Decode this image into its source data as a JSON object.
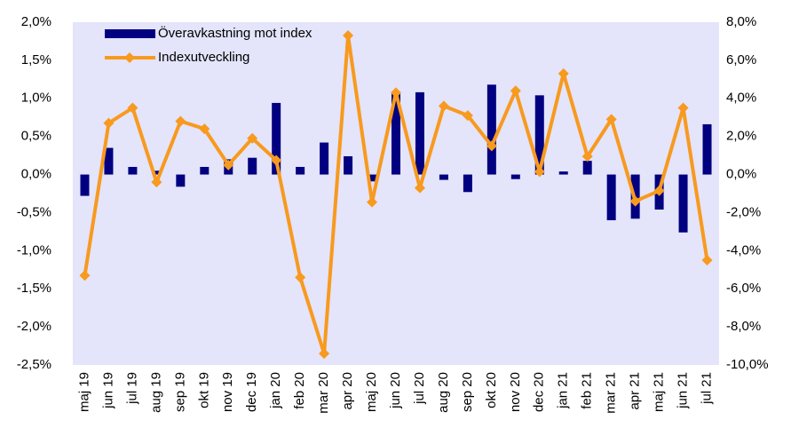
{
  "chart_data": {
    "type": "bar-line",
    "categories": [
      "maj 19",
      "jun 19",
      "jul 19",
      "aug 19",
      "sep 19",
      "okt 19",
      "nov 19",
      "dec 19",
      "jan 20",
      "feb 20",
      "mar 20",
      "apr 20",
      "maj 20",
      "jun 20",
      "jul 20",
      "aug 20",
      "sep 20",
      "okt 20",
      "nov 20",
      "dec 20",
      "jan 21",
      "feb 21",
      "mar 21",
      "apr 21",
      "maj 21",
      "jun 21",
      "jul 21"
    ],
    "series": [
      {
        "name": "Överavkastning mot index",
        "type": "bar",
        "color": "#000080",
        "values": [
          -0.28,
          0.35,
          0.1,
          0.05,
          -0.16,
          0.1,
          0.2,
          0.22,
          0.94,
          0.1,
          0.42,
          0.24,
          -0.09,
          1.06,
          1.08,
          -0.07,
          -0.23,
          1.18,
          -0.06,
          1.04,
          0.04,
          0.18,
          -0.6,
          -0.58,
          -0.46,
          -0.76,
          0.66
        ]
      },
      {
        "name": "Indexutveckling",
        "type": "line",
        "axis": "y2",
        "color": "#f79a1e",
        "values": [
          -5.3,
          2.7,
          3.5,
          -0.4,
          2.8,
          2.4,
          0.5,
          1.9,
          0.75,
          -5.4,
          -9.4,
          7.3,
          -1.45,
          4.3,
          -0.7,
          3.6,
          3.1,
          1.5,
          4.4,
          0.15,
          5.3,
          0.95,
          2.9,
          -1.4,
          -0.85,
          3.5,
          -4.5
        ]
      }
    ],
    "ylim": [
      -2.5,
      2.0
    ],
    "yticks": [
      {
        "value": -2.5,
        "label": "-2,5%"
      },
      {
        "value": -2.0,
        "label": "-2,0%"
      },
      {
        "value": -1.5,
        "label": "-1,5%"
      },
      {
        "value": -1.0,
        "label": "-1,0%"
      },
      {
        "value": -0.5,
        "label": "-0,5%"
      },
      {
        "value": 0,
        "label": "0,0%"
      },
      {
        "value": 0.5,
        "label": "0,5%"
      },
      {
        "value": 1.0,
        "label": "1,0%"
      },
      {
        "value": 1.5,
        "label": "1,5%"
      },
      {
        "value": 2.0,
        "label": "2,0%"
      }
    ],
    "y2lim": [
      -10,
      8
    ],
    "y2ticks": [
      {
        "value": -10,
        "label": "-10,0%"
      },
      {
        "value": -8,
        "label": "-8,0%"
      },
      {
        "value": -6,
        "label": "-6,0%"
      },
      {
        "value": -4,
        "label": "-4,0%"
      },
      {
        "value": -2,
        "label": "-2,0%"
      },
      {
        "value": 0,
        "label": "0,0%"
      },
      {
        "value": 2,
        "label": "2,0%"
      },
      {
        "value": 4,
        "label": "4,0%"
      },
      {
        "value": 6,
        "label": "6,0%"
      },
      {
        "value": 8,
        "label": "8,0%"
      }
    ],
    "plot_background": "#e4e4fb",
    "legend": "top-left"
  }
}
